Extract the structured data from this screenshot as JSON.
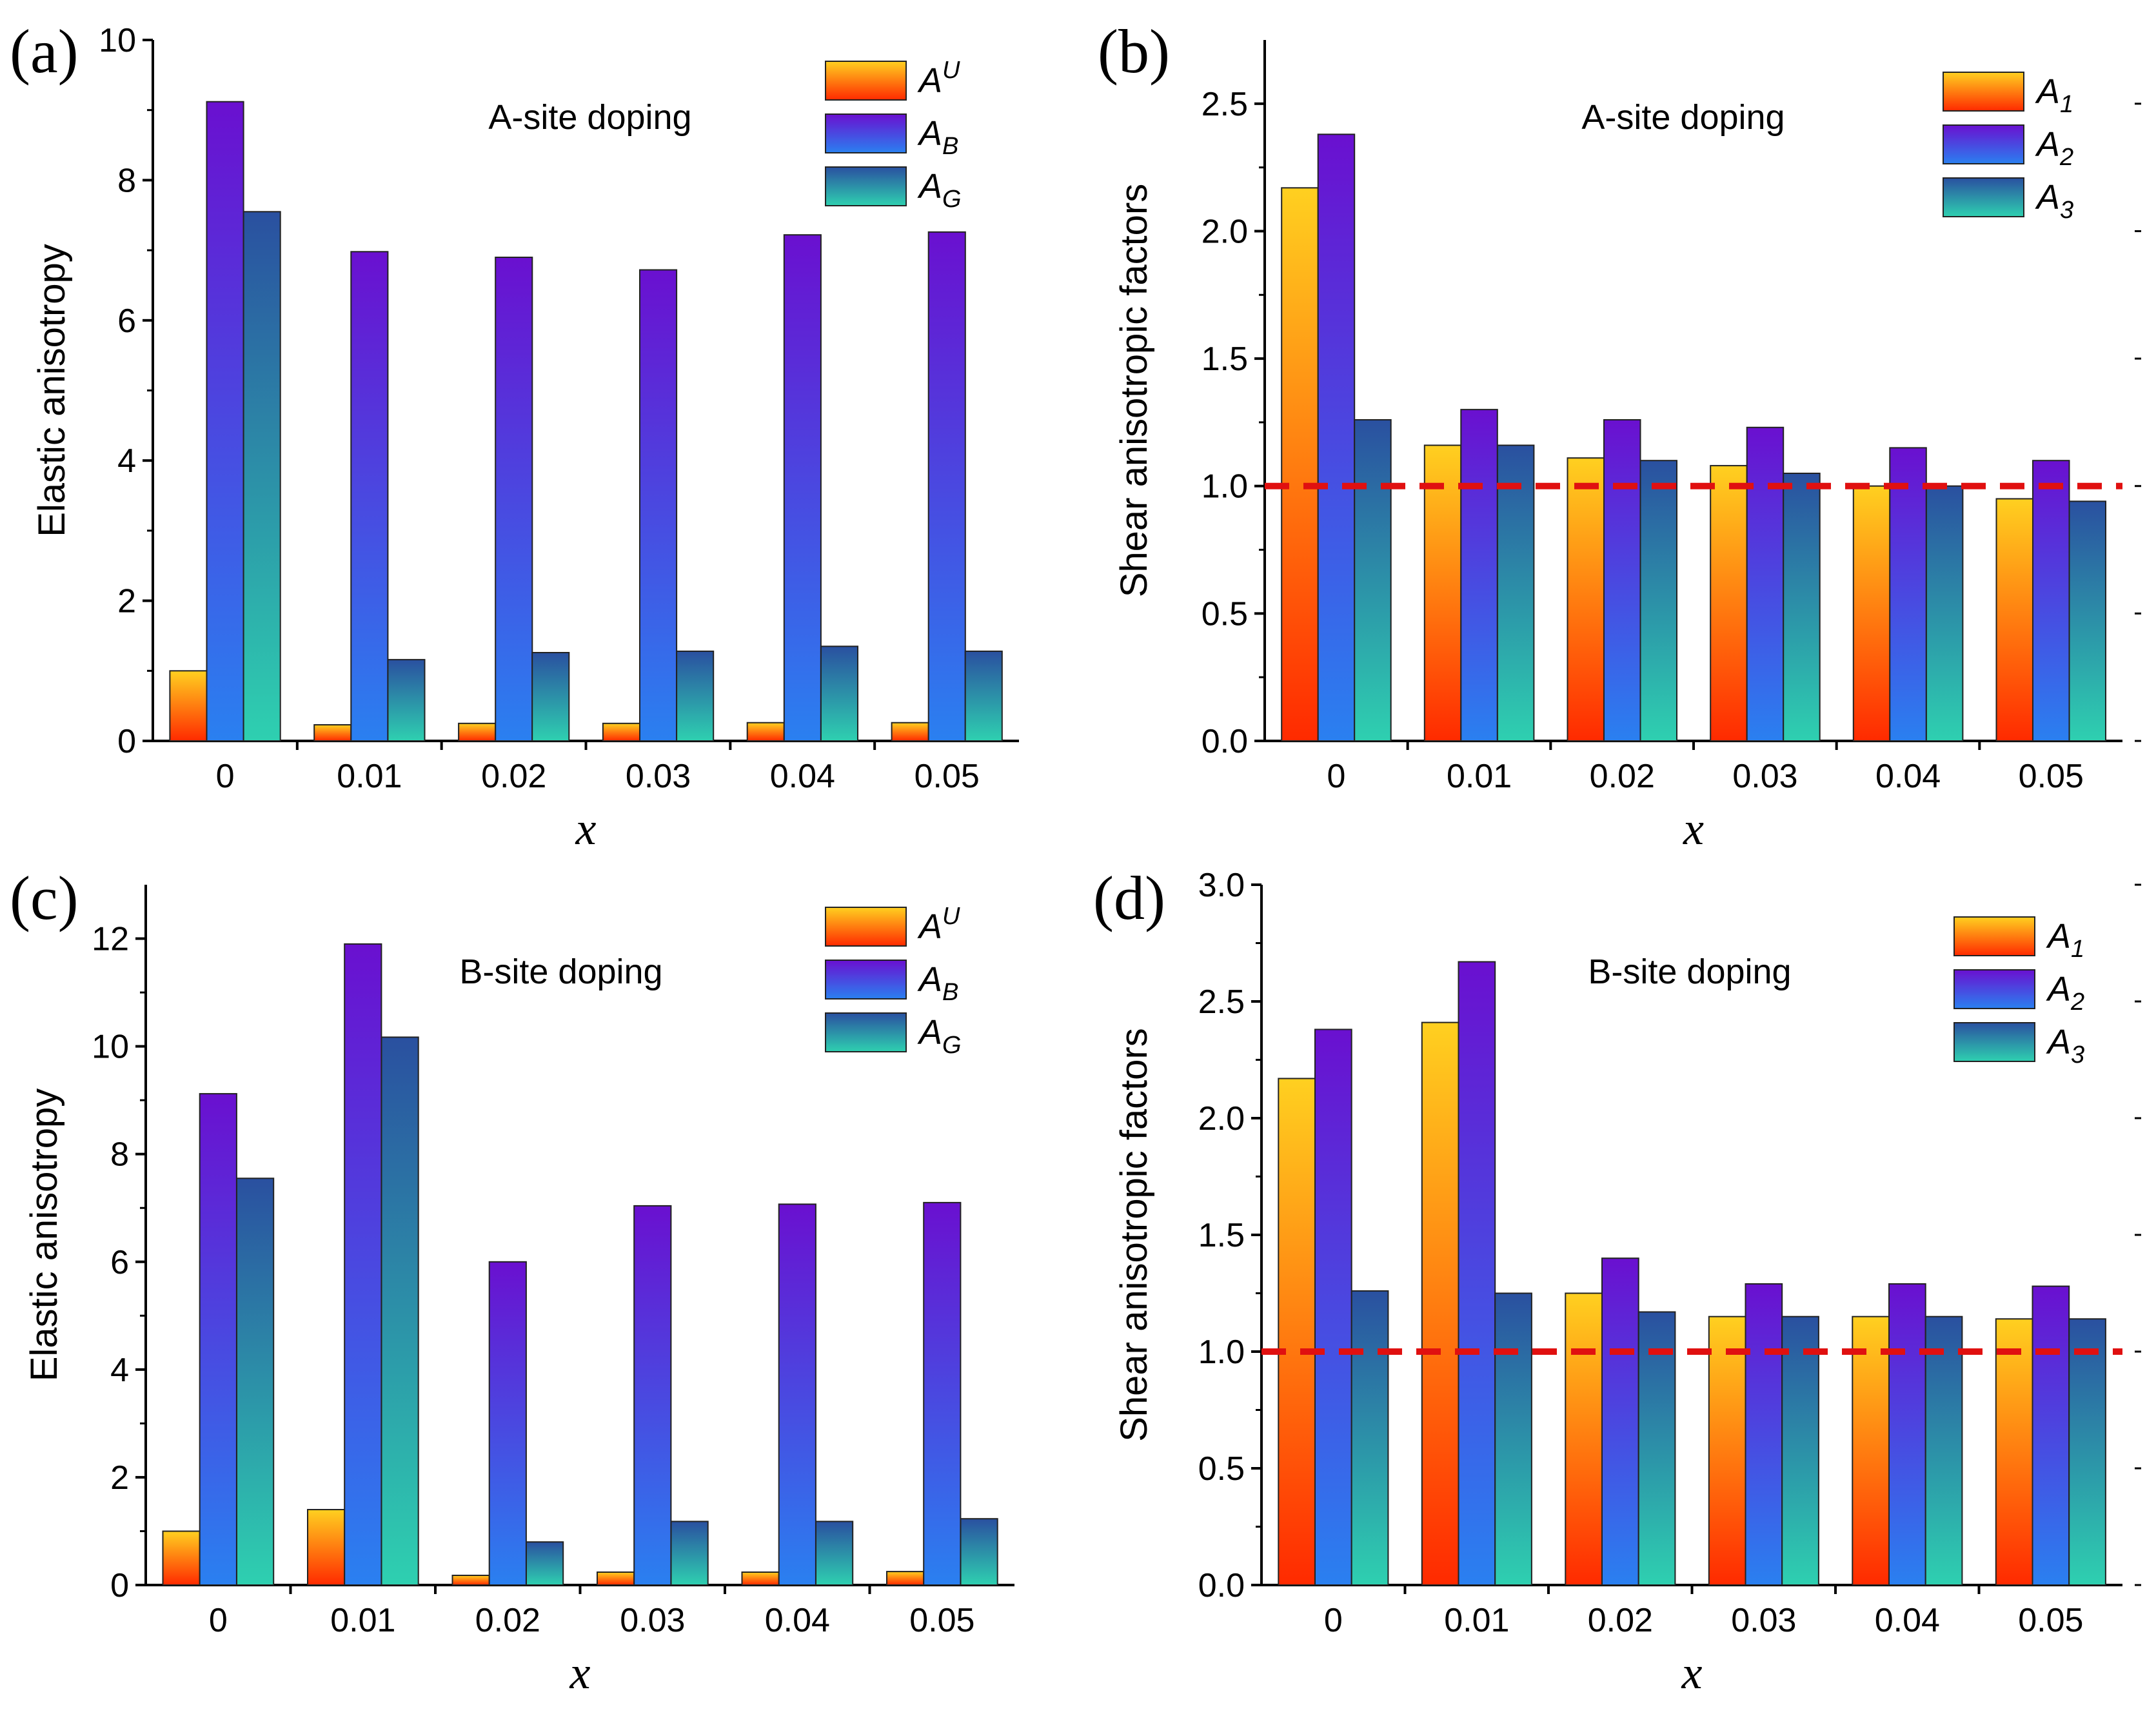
{
  "chart_data": [
    {
      "panel_label": "(a)",
      "type": "bar",
      "annotation": "A-site doping",
      "xlabel": "x",
      "ylabel": "Elastic anisotropy",
      "categories": [
        "0",
        "0.01",
        "0.02",
        "0.03",
        "0.04",
        "0.05"
      ],
      "ylim": [
        0,
        10
      ],
      "yticks": [
        "0",
        "2",
        "4",
        "6",
        "8",
        "10"
      ],
      "series": [
        {
          "name": "A",
          "sub": "U",
          "sub_pos": "sup",
          "gradient": [
            "#ff2a00",
            "#ffd020"
          ],
          "values": [
            1.0,
            0.23,
            0.25,
            0.25,
            0.26,
            0.26
          ]
        },
        {
          "name": "A",
          "sub": "B",
          "sub_pos": "sub",
          "gradient": [
            "#2a80f0",
            "#6a10d0"
          ],
          "values": [
            9.12,
            6.98,
            6.9,
            6.72,
            7.22,
            7.26
          ]
        },
        {
          "name": "A",
          "sub": "G",
          "sub_pos": "sub",
          "gradient": [
            "#2ed0b0",
            "#2a50a0"
          ],
          "values": [
            7.55,
            1.16,
            1.26,
            1.28,
            1.35,
            1.28
          ]
        }
      ],
      "reference_line": null
    },
    {
      "panel_label": "(b)",
      "type": "bar",
      "annotation": "A-site doping",
      "xlabel": "x",
      "ylabel": "Shear anisotropic factors",
      "categories": [
        "0",
        "0.01",
        "0.02",
        "0.03",
        "0.04",
        "0.05"
      ],
      "ylim": [
        0,
        2.75
      ],
      "yticks": [
        "0.0",
        "0.5",
        "1.0",
        "1.5",
        "2.0",
        "2.5"
      ],
      "series": [
        {
          "name": "A",
          "sub": "1",
          "sub_pos": "sub",
          "gradient": [
            "#ff2a00",
            "#ffd020"
          ],
          "values": [
            2.17,
            1.16,
            1.11,
            1.08,
            1.0,
            0.95
          ]
        },
        {
          "name": "A",
          "sub": "2",
          "sub_pos": "sub",
          "gradient": [
            "#2a80f0",
            "#6a10d0"
          ],
          "values": [
            2.38,
            1.3,
            1.26,
            1.23,
            1.15,
            1.1
          ]
        },
        {
          "name": "A",
          "sub": "3",
          "sub_pos": "sub",
          "gradient": [
            "#2ed0b0",
            "#2a50a0"
          ],
          "values": [
            1.26,
            1.16,
            1.1,
            1.05,
            1.0,
            0.94
          ]
        }
      ],
      "reference_line": {
        "y": 1.0,
        "color": "#e01010",
        "style": "dashed"
      }
    },
    {
      "panel_label": "(c)",
      "type": "bar",
      "annotation": "B-site doping",
      "xlabel": "x",
      "ylabel": "Elastic anisotropy",
      "categories": [
        "0",
        "0.01",
        "0.02",
        "0.03",
        "0.04",
        "0.05"
      ],
      "ylim": [
        0,
        13
      ],
      "yticks": [
        "0",
        "2",
        "4",
        "6",
        "8",
        "10",
        "12"
      ],
      "series": [
        {
          "name": "A",
          "sub": "U",
          "sub_pos": "sup",
          "gradient": [
            "#ff2a00",
            "#ffd020"
          ],
          "values": [
            1.0,
            1.4,
            0.18,
            0.24,
            0.24,
            0.25
          ]
        },
        {
          "name": "A",
          "sub": "B",
          "sub_pos": "sub",
          "gradient": [
            "#2a80f0",
            "#6a10d0"
          ],
          "values": [
            9.12,
            11.9,
            6.0,
            7.04,
            7.07,
            7.1
          ]
        },
        {
          "name": "A",
          "sub": "G",
          "sub_pos": "sub",
          "gradient": [
            "#2ed0b0",
            "#2a50a0"
          ],
          "values": [
            7.55,
            10.17,
            0.8,
            1.18,
            1.18,
            1.23
          ]
        }
      ],
      "reference_line": null
    },
    {
      "panel_label": "(d)",
      "type": "bar",
      "annotation": "B-site doping",
      "xlabel": "x",
      "ylabel": "Shear anisotropic factors",
      "categories": [
        "0",
        "0.01",
        "0.02",
        "0.03",
        "0.04",
        "0.05"
      ],
      "ylim": [
        0,
        3.0
      ],
      "yticks": [
        "0.0",
        "0.5",
        "1.0",
        "1.5",
        "2.0",
        "2.5",
        "3.0"
      ],
      "series": [
        {
          "name": "A",
          "sub": "1",
          "sub_pos": "sub",
          "gradient": [
            "#ff2a00",
            "#ffd020"
          ],
          "values": [
            2.17,
            2.41,
            1.25,
            1.15,
            1.15,
            1.14
          ]
        },
        {
          "name": "A",
          "sub": "2",
          "sub_pos": "sub",
          "gradient": [
            "#2a80f0",
            "#6a10d0"
          ],
          "values": [
            2.38,
            2.67,
            1.4,
            1.29,
            1.29,
            1.28
          ]
        },
        {
          "name": "A",
          "sub": "3",
          "sub_pos": "sub",
          "gradient": [
            "#2ed0b0",
            "#2a50a0"
          ],
          "values": [
            1.26,
            1.25,
            1.17,
            1.15,
            1.15,
            1.14
          ]
        }
      ],
      "reference_line": {
        "y": 1.0,
        "color": "#e01010",
        "style": "dashed"
      }
    }
  ]
}
